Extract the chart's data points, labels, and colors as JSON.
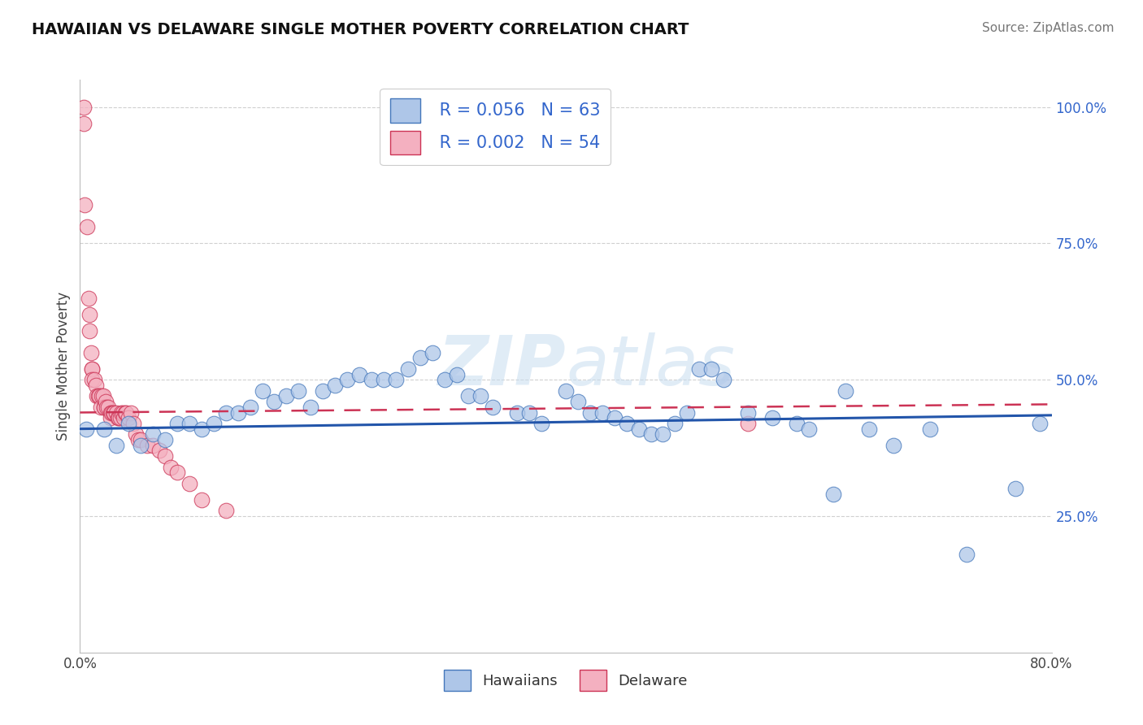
{
  "title": "HAWAIIAN VS DELAWARE SINGLE MOTHER POVERTY CORRELATION CHART",
  "source": "Source: ZipAtlas.com",
  "ylabel": "Single Mother Poverty",
  "xlim": [
    0.0,
    0.8
  ],
  "ylim": [
    0.0,
    1.05
  ],
  "background_color": "#ffffff",
  "grid_color": "#d0d0d0",
  "hawaiian_color": "#aec6e8",
  "delaware_color": "#f4b0c0",
  "hawaiian_edge_color": "#4477bb",
  "delaware_edge_color": "#cc3355",
  "hawaiian_line_color": "#2255aa",
  "delaware_line_color": "#cc3355",
  "legend_r1": "R = 0.056",
  "legend_n1": "N = 63",
  "legend_r2": "R = 0.002",
  "legend_n2": "N = 54",
  "hawaiian_x": [
    0.005,
    0.02,
    0.03,
    0.04,
    0.05,
    0.06,
    0.07,
    0.08,
    0.09,
    0.1,
    0.11,
    0.12,
    0.13,
    0.14,
    0.15,
    0.16,
    0.17,
    0.18,
    0.19,
    0.2,
    0.21,
    0.22,
    0.23,
    0.24,
    0.25,
    0.26,
    0.27,
    0.28,
    0.29,
    0.3,
    0.31,
    0.32,
    0.33,
    0.34,
    0.36,
    0.37,
    0.38,
    0.4,
    0.41,
    0.42,
    0.43,
    0.44,
    0.45,
    0.46,
    0.47,
    0.48,
    0.49,
    0.5,
    0.51,
    0.52,
    0.53,
    0.55,
    0.57,
    0.59,
    0.6,
    0.62,
    0.63,
    0.65,
    0.67,
    0.7,
    0.73,
    0.77,
    0.79
  ],
  "hawaiian_y": [
    0.41,
    0.41,
    0.38,
    0.42,
    0.38,
    0.4,
    0.39,
    0.42,
    0.42,
    0.41,
    0.42,
    0.44,
    0.44,
    0.45,
    0.48,
    0.46,
    0.47,
    0.48,
    0.45,
    0.48,
    0.49,
    0.5,
    0.51,
    0.5,
    0.5,
    0.5,
    0.52,
    0.54,
    0.55,
    0.5,
    0.51,
    0.47,
    0.47,
    0.45,
    0.44,
    0.44,
    0.42,
    0.48,
    0.46,
    0.44,
    0.44,
    0.43,
    0.42,
    0.41,
    0.4,
    0.4,
    0.42,
    0.44,
    0.52,
    0.52,
    0.5,
    0.44,
    0.43,
    0.42,
    0.41,
    0.29,
    0.48,
    0.41,
    0.38,
    0.41,
    0.18,
    0.3,
    0.42
  ],
  "delaware_x": [
    0.003,
    0.003,
    0.004,
    0.006,
    0.007,
    0.008,
    0.008,
    0.009,
    0.01,
    0.01,
    0.01,
    0.012,
    0.013,
    0.014,
    0.015,
    0.016,
    0.017,
    0.018,
    0.019,
    0.02,
    0.02,
    0.021,
    0.022,
    0.023,
    0.025,
    0.025,
    0.026,
    0.027,
    0.028,
    0.03,
    0.031,
    0.032,
    0.033,
    0.034,
    0.035,
    0.036,
    0.037,
    0.038,
    0.04,
    0.042,
    0.044,
    0.046,
    0.048,
    0.05,
    0.055,
    0.06,
    0.065,
    0.07,
    0.075,
    0.08,
    0.09,
    0.1,
    0.12,
    0.55
  ],
  "delaware_y": [
    1.0,
    0.97,
    0.82,
    0.78,
    0.65,
    0.62,
    0.59,
    0.55,
    0.52,
    0.52,
    0.5,
    0.5,
    0.49,
    0.47,
    0.47,
    0.47,
    0.45,
    0.47,
    0.47,
    0.45,
    0.45,
    0.46,
    0.45,
    0.45,
    0.44,
    0.43,
    0.44,
    0.44,
    0.44,
    0.44,
    0.43,
    0.43,
    0.43,
    0.44,
    0.44,
    0.43,
    0.44,
    0.44,
    0.43,
    0.44,
    0.42,
    0.4,
    0.39,
    0.39,
    0.38,
    0.38,
    0.37,
    0.36,
    0.34,
    0.33,
    0.31,
    0.28,
    0.26,
    0.42
  ]
}
